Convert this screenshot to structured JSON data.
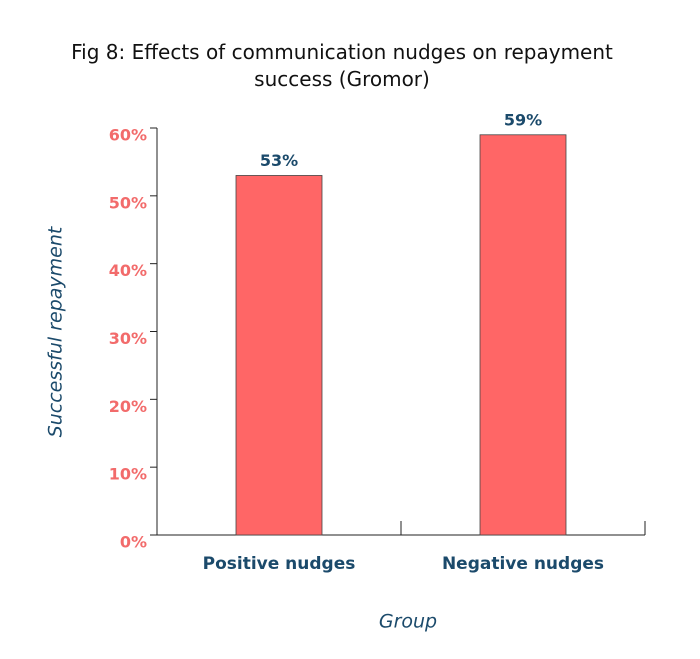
{
  "chart_data": {
    "type": "bar",
    "title": "Fig 8: Effects of communication nudges on repayment success (Gromor)",
    "x_label": "Group",
    "y_label": "Successful repayment",
    "categories": [
      "Positive nudges",
      "Negative nudges"
    ],
    "values": [
      53,
      59
    ],
    "value_labels": [
      "53%",
      "59%"
    ],
    "color": "#ff6666",
    "ylim": [
      0,
      60
    ],
    "yticks": [
      {
        "value": 0,
        "label": "0%"
      },
      {
        "value": 10,
        "label": "10%"
      },
      {
        "value": 20,
        "label": "20%"
      },
      {
        "value": 30,
        "label": "30%"
      },
      {
        "value": 40,
        "label": "40%"
      },
      {
        "value": 50,
        "label": "50%"
      },
      {
        "value": 60,
        "label": "60%"
      }
    ],
    "grid": false
  }
}
